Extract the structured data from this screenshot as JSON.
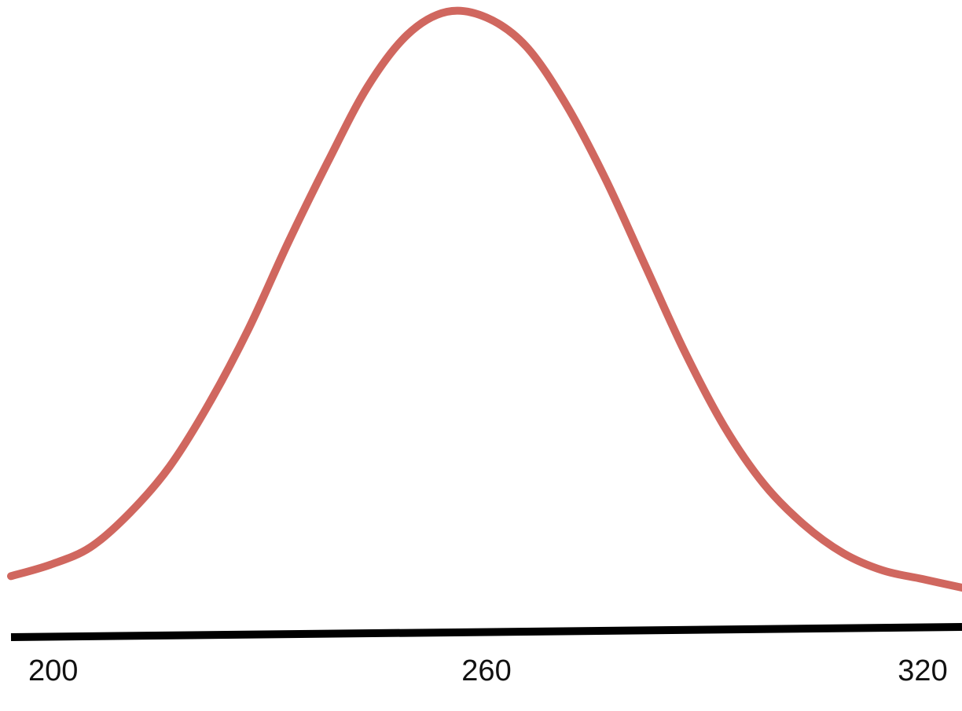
{
  "chart_data": {
    "type": "line",
    "title": "",
    "xlabel": "",
    "ylabel": "",
    "xlim": [
      200,
      320
    ],
    "x_ticks": [
      "200",
      "260",
      "320"
    ],
    "series": [
      {
        "color": "#d0675f",
        "x": [
          200,
          205,
          210,
          215,
          220,
          225,
          230,
          235,
          240,
          245,
          250,
          255,
          260,
          265,
          270,
          275,
          280,
          285,
          290,
          295,
          300,
          305,
          310,
          315,
          320
        ],
        "y": [
          0.02,
          0.04,
          0.07,
          0.13,
          0.21,
          0.32,
          0.45,
          0.6,
          0.74,
          0.87,
          0.96,
          1.0,
          0.99,
          0.94,
          0.84,
          0.71,
          0.56,
          0.41,
          0.28,
          0.18,
          0.11,
          0.06,
          0.03,
          0.015,
          0.0
        ]
      }
    ],
    "axis_color": "#000000",
    "grid": false,
    "legend": "none"
  }
}
